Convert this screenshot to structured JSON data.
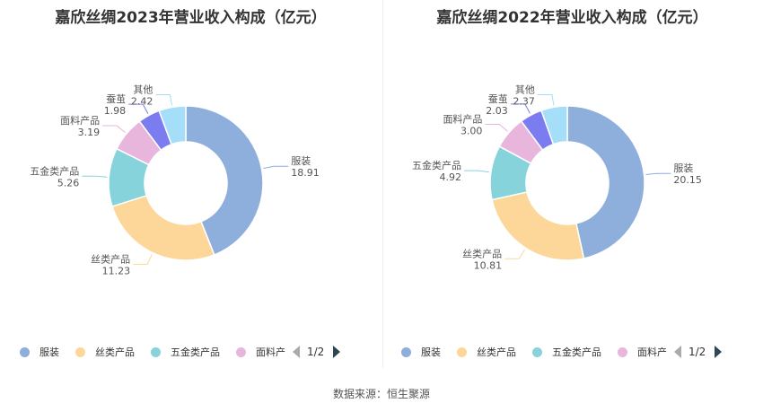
{
  "source": "数据来源：恒生聚源",
  "colors": [
    "#8eaedb",
    "#fdd79a",
    "#86d3dc",
    "#e8b5dc",
    "#7b7cf0",
    "#a4def9"
  ],
  "legend_pager": "1/2",
  "chart_data": [
    {
      "type": "pie",
      "title": "嘉欣丝绸2023年营业收入构成（亿元）",
      "categories": [
        "服装",
        "丝类产品",
        "五金类产品",
        "面料产品",
        "蚕茧",
        "其他"
      ],
      "values": [
        18.91,
        11.23,
        5.26,
        3.19,
        1.98,
        2.42
      ],
      "value_labels": [
        "18.91",
        "11.23",
        "5.26",
        "3.19",
        "1.98",
        "2.42"
      ],
      "legend_visible": [
        "服装",
        "丝类产品",
        "五金类产品",
        "面料产"
      ]
    },
    {
      "type": "pie",
      "title": "嘉欣丝绸2022年营业收入构成（亿元）",
      "categories": [
        "服装",
        "丝类产品",
        "五金类产品",
        "面料产品",
        "蚕茧",
        "其他"
      ],
      "values": [
        20.15,
        10.81,
        4.92,
        3.0,
        2.03,
        2.37
      ],
      "value_labels": [
        "20.15",
        "10.81",
        "4.92",
        "3.00",
        "2.03",
        "2.37"
      ],
      "legend_visible": [
        "服装",
        "丝类产品",
        "五金类产品",
        "面料产"
      ]
    }
  ]
}
